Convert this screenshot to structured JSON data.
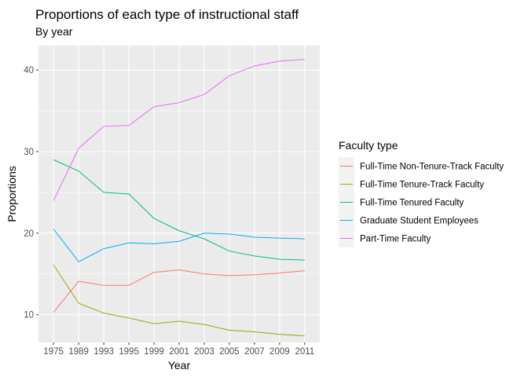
{
  "chart_data": {
    "type": "line",
    "title": "Proportions of each type of instructional staff",
    "subtitle": "By year",
    "xlabel": "Year",
    "ylabel": "Proportions",
    "categories": [
      "1975",
      "1989",
      "1993",
      "1995",
      "1999",
      "2001",
      "2003",
      "2005",
      "2007",
      "2009",
      "2011"
    ],
    "ylim": [
      6.6,
      43.0
    ],
    "yticks": [
      10,
      20,
      30,
      40
    ],
    "grid": true,
    "legend": {
      "title": "Faculty type",
      "position": "right"
    },
    "series": [
      {
        "name": "Full-Time Non-Tenure-Track Faculty",
        "color": "#F8766D",
        "values": [
          10.3,
          14.1,
          13.6,
          13.6,
          15.2,
          15.5,
          15.0,
          14.8,
          14.9,
          15.1,
          15.4
        ]
      },
      {
        "name": "Full-Time Tenure-Track Faculty",
        "color": "#A3A500",
        "values": [
          16.1,
          11.4,
          10.2,
          9.6,
          8.9,
          9.2,
          8.8,
          8.1,
          7.9,
          7.6,
          7.4
        ]
      },
      {
        "name": "Full-Time Tenured Faculty",
        "color": "#00BF7D",
        "values": [
          29.0,
          27.6,
          25.0,
          24.8,
          21.8,
          20.3,
          19.3,
          17.8,
          17.2,
          16.8,
          16.7
        ]
      },
      {
        "name": "Graduate Student Employees",
        "color": "#00B0F6",
        "values": [
          20.5,
          16.5,
          18.1,
          18.8,
          18.7,
          19.0,
          20.0,
          19.9,
          19.5,
          19.4,
          19.3
        ]
      },
      {
        "name": "Part-Time Faculty",
        "color": "#E76BF3",
        "values": [
          24.0,
          30.4,
          33.1,
          33.2,
          35.5,
          36.0,
          37.0,
          39.3,
          40.5,
          41.1,
          41.3
        ]
      }
    ]
  }
}
